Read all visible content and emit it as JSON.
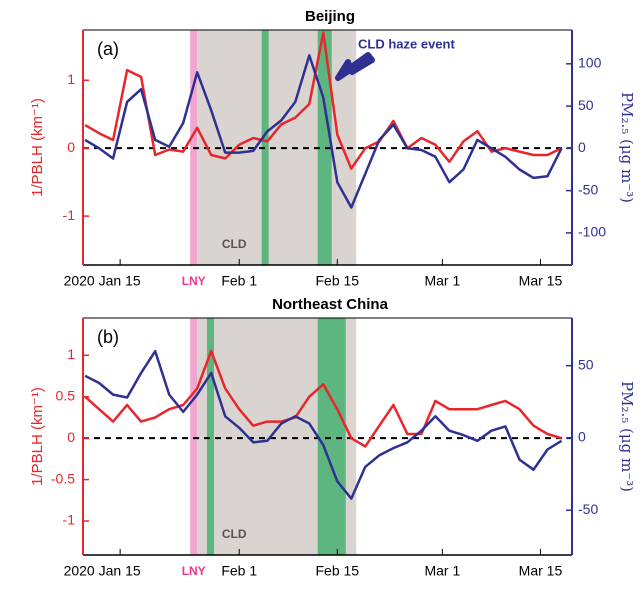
{
  "chart_data": [
    {
      "type": "line",
      "title": "Beijing",
      "panel_label": "(a)",
      "x": [
        10,
        12,
        14,
        16,
        18,
        20,
        22,
        24,
        26,
        28,
        30,
        32,
        34,
        36,
        38,
        40,
        42,
        44,
        46,
        48,
        50,
        52,
        54,
        56,
        58,
        60,
        62,
        64,
        66,
        68,
        70,
        72,
        74,
        76,
        78
      ],
      "xlim": [
        9.7,
        79.5
      ],
      "xticks": [
        {
          "value": 15,
          "label": "2020 Jan 15"
        },
        {
          "value": 32,
          "label": "Feb 1"
        },
        {
          "value": 46,
          "label": "Feb 15"
        },
        {
          "value": 61,
          "label": "Mar 1"
        },
        {
          "value": 75,
          "label": "Mar 15"
        }
      ],
      "ylim": [
        -1.72,
        1.74
      ],
      "yticks": [
        -1,
        0,
        1
      ],
      "y2lim": [
        -138,
        140
      ],
      "y2ticks": [
        -100,
        -50,
        0,
        50,
        100
      ],
      "y_label": "1/PBLH (km⁻¹)",
      "y2_label": "PM₂.₅ (μg m⁻³)",
      "reference_line": 0,
      "spans": [
        {
          "label": "LNY",
          "start": 25,
          "end": 26,
          "color": "#f2a6cf"
        },
        {
          "label": "CLD",
          "start": 26,
          "end": 48.7,
          "color": "#d9d4d0"
        },
        {
          "start": 35.2,
          "end": 36.2,
          "color": "#5db67f"
        },
        {
          "start": 43.2,
          "end": 45.2,
          "color": "#5db67f"
        }
      ],
      "annotation": "CLD haze event",
      "series": [
        {
          "color": "#e8262b",
          "values": [
            0.34,
            0.22,
            0.12,
            1.15,
            1.05,
            -0.1,
            -0.02,
            -0.05,
            0.3,
            -0.1,
            -0.15,
            0.05,
            0.15,
            0.1,
            0.35,
            0.45,
            0.65,
            1.7,
            0.2,
            -0.3,
            0.0,
            0.1,
            0.4,
            0.0,
            0.15,
            0.05,
            -0.2,
            0.1,
            0.25,
            -0.05,
            0.0,
            -0.05,
            -0.1,
            -0.1,
            0.0
          ]
        },
        {
          "color": "#2e3192",
          "axis": "y2",
          "values": [
            10,
            0,
            -12,
            55,
            70,
            10,
            2,
            30,
            90,
            45,
            -5,
            -5,
            -3,
            20,
            33,
            55,
            110,
            60,
            -40,
            -70,
            -30,
            10,
            28,
            0,
            -2,
            -10,
            -40,
            -25,
            10,
            0,
            -10,
            -25,
            -35,
            -33,
            0
          ]
        }
      ]
    },
    {
      "type": "line",
      "title": "Northeast China",
      "panel_label": "(b)",
      "x": [
        10,
        12,
        14,
        16,
        18,
        20,
        22,
        24,
        26,
        28,
        30,
        32,
        34,
        36,
        38,
        40,
        42,
        44,
        46,
        48,
        50,
        52,
        54,
        56,
        58,
        60,
        62,
        64,
        66,
        68,
        70,
        72,
        74,
        76,
        78
      ],
      "xlim": [
        9.7,
        79.5
      ],
      "xticks": [
        {
          "value": 15,
          "label": "2020 Jan 15"
        },
        {
          "value": 32,
          "label": "Feb 1"
        },
        {
          "value": 46,
          "label": "Feb 15"
        },
        {
          "value": 61,
          "label": "Mar 1"
        },
        {
          "value": 75,
          "label": "Mar 15"
        }
      ],
      "ylim": [
        -1.41,
        1.45
      ],
      "yticks": [
        -1,
        -0.5,
        0,
        0.5,
        1
      ],
      "y2lim": [
        -81,
        83
      ],
      "y2ticks": [
        -50,
        0,
        50
      ],
      "y_label": "1/PBLH (km⁻¹)",
      "y2_label": "PM₂.₅ (μg m⁻³)",
      "reference_line": 0,
      "spans": [
        {
          "label": "LNY",
          "start": 25,
          "end": 26,
          "color": "#f2a6cf"
        },
        {
          "label": "CLD",
          "start": 26,
          "end": 48.7,
          "color": "#d9d4d0"
        },
        {
          "start": 27.4,
          "end": 28.4,
          "color": "#5db67f"
        },
        {
          "start": 43.2,
          "end": 47.2,
          "color": "#5db67f"
        }
      ],
      "series": [
        {
          "color": "#e8262b",
          "values": [
            0.5,
            0.35,
            0.2,
            0.4,
            0.2,
            0.25,
            0.35,
            0.4,
            0.6,
            1.05,
            0.6,
            0.35,
            0.15,
            0.2,
            0.2,
            0.25,
            0.5,
            0.65,
            0.35,
            0.0,
            -0.1,
            0.15,
            0.4,
            0.05,
            0.05,
            0.45,
            0.35,
            0.35,
            0.35,
            0.4,
            0.45,
            0.35,
            0.15,
            0.05,
            0.0
          ]
        },
        {
          "color": "#2e3192",
          "axis": "y2",
          "values": [
            43,
            38,
            30,
            28,
            45,
            60,
            30,
            18,
            30,
            45,
            15,
            7,
            -3,
            -2,
            10,
            15,
            10,
            -5,
            -30,
            -42,
            -20,
            -12,
            -7,
            -3,
            5,
            15,
            5,
            2,
            -2,
            5,
            8,
            -15,
            -22,
            -8,
            -2
          ]
        }
      ]
    }
  ]
}
